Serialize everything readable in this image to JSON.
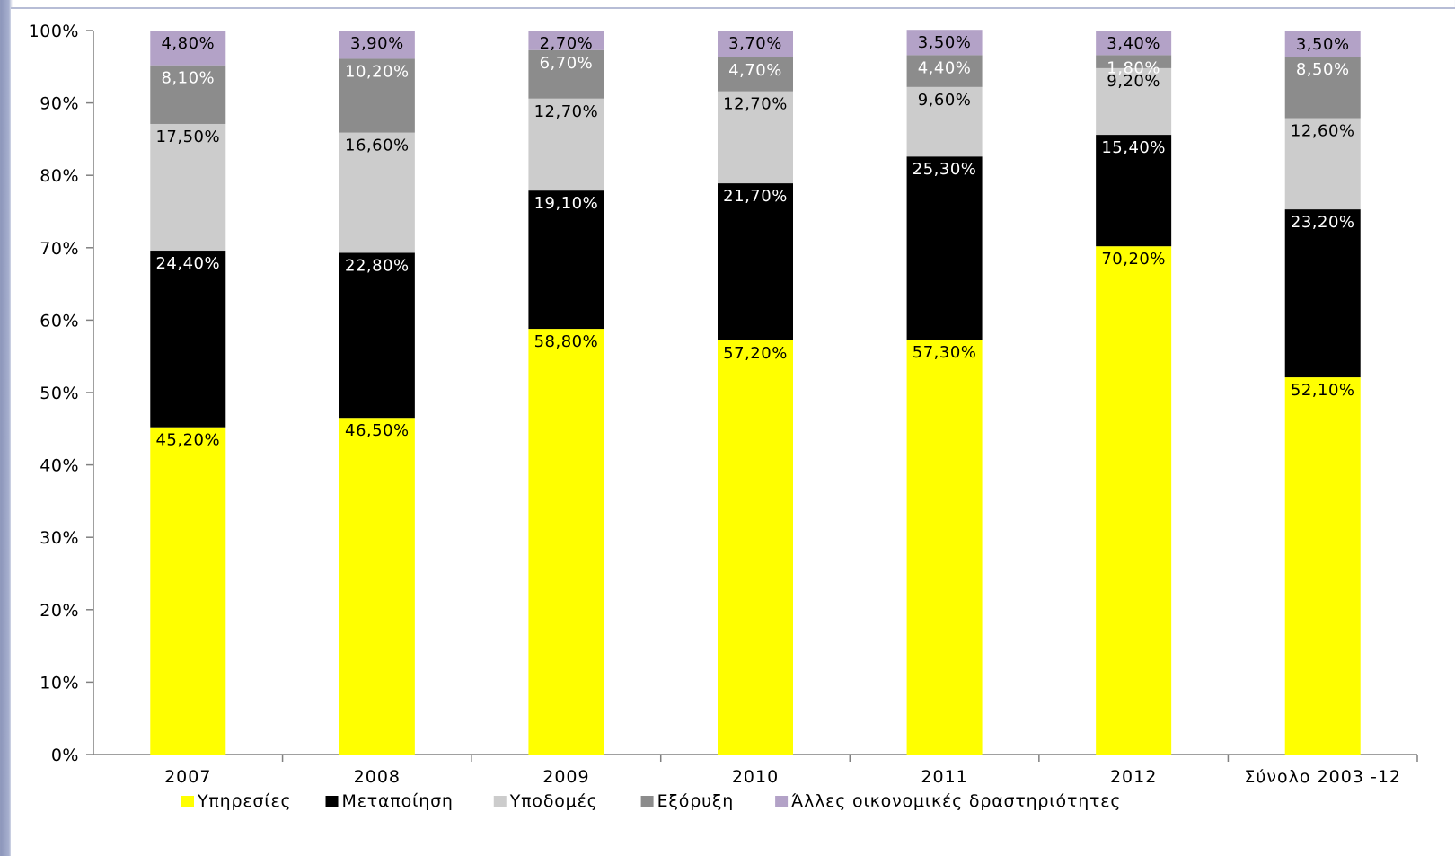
{
  "chart_data": {
    "type": "bar",
    "stacked": true,
    "percent": true,
    "categories": [
      "2007",
      "2008",
      "2009",
      "2010",
      "2011",
      "2012",
      "Σύνολο 2003 -12"
    ],
    "series": [
      {
        "name": "Υπηρεσίες",
        "color": "#ffff00",
        "label_color": "#000000",
        "values": [
          45.2,
          46.5,
          58.8,
          57.2,
          57.3,
          70.2,
          52.1
        ],
        "labels": [
          "45,20%",
          "46,50%",
          "58,80%",
          "57,20%",
          "57,30%",
          "70,20%",
          "52,10%"
        ]
      },
      {
        "name": "Μεταποίηση",
        "color": "#000000",
        "label_color": "#ffffff",
        "values": [
          24.4,
          22.8,
          19.1,
          21.7,
          25.3,
          15.4,
          23.2
        ],
        "labels": [
          "24,40%",
          "22,80%",
          "19,10%",
          "21,70%",
          "25,30%",
          "15,40%",
          "23,20%"
        ]
      },
      {
        "name": "Υποδομές",
        "color": "#cccccc",
        "label_color": "#000000",
        "values": [
          17.5,
          16.6,
          12.7,
          12.7,
          9.6,
          9.2,
          12.6
        ],
        "labels": [
          "17,50%",
          "16,60%",
          "12,70%",
          "12,70%",
          "9,60%",
          "9,20%",
          "12,60%"
        ]
      },
      {
        "name": "Εξόρυξη",
        "color": "#8c8c8c",
        "label_color": "#ffffff",
        "values": [
          8.1,
          10.2,
          6.7,
          4.7,
          4.4,
          1.8,
          8.5
        ],
        "labels": [
          "8,10%",
          "10,20%",
          "6,70%",
          "4,70%",
          "4,40%",
          "1,80%",
          "8,50%"
        ]
      },
      {
        "name": "Άλλες οικονομικές δραστηριότητες",
        "color": "#b3a2c7",
        "label_color": "#000000",
        "values": [
          4.8,
          3.9,
          2.7,
          3.7,
          3.5,
          3.4,
          3.5
        ],
        "labels": [
          "4,80%",
          "3,90%",
          "2,70%",
          "3,70%",
          "3,50%",
          "3,40%",
          "3,50%"
        ]
      }
    ],
    "y_ticks": [
      "0%",
      "10%",
      "20%",
      "30%",
      "40%",
      "50%",
      "60%",
      "70%",
      "80%",
      "90%",
      "100%"
    ],
    "ylim": [
      0,
      100
    ],
    "grid": false,
    "legend_position": "bottom"
  }
}
